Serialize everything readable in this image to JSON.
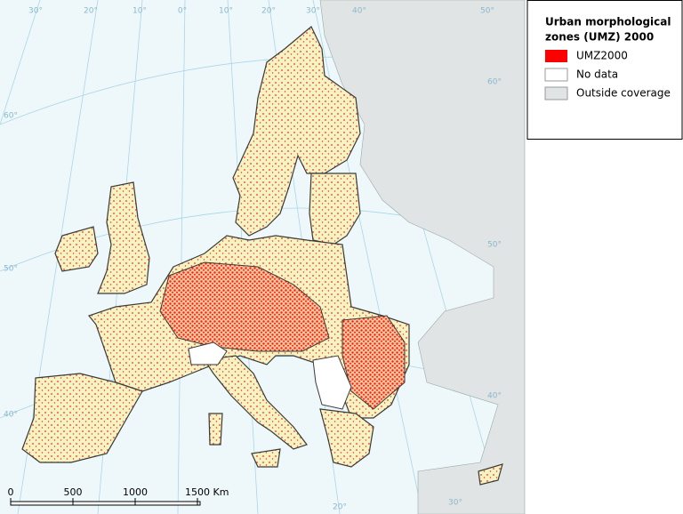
{
  "legend": {
    "title": [
      "Urban morphological",
      "zones (UMZ) 2000"
    ],
    "items": [
      {
        "label": "UMZ2000",
        "color": "#ff0000"
      },
      {
        "label": "No data",
        "color": "#ffffff"
      },
      {
        "label": "Outside coverage",
        "color": "#e1e4e4"
      }
    ]
  },
  "scale_bar": {
    "labels": [
      "0",
      "500",
      "1000",
      "1500 Km"
    ]
  },
  "graticule": {
    "top": [
      "30°",
      "20°",
      "10°",
      "0°",
      "10°",
      "20°",
      "30°",
      "40°",
      "50°"
    ],
    "left": [
      "60°",
      "50°",
      "40°"
    ],
    "right": [
      "60°",
      "50°",
      "40°"
    ],
    "bottom": [
      "20°",
      "30°"
    ]
  }
}
